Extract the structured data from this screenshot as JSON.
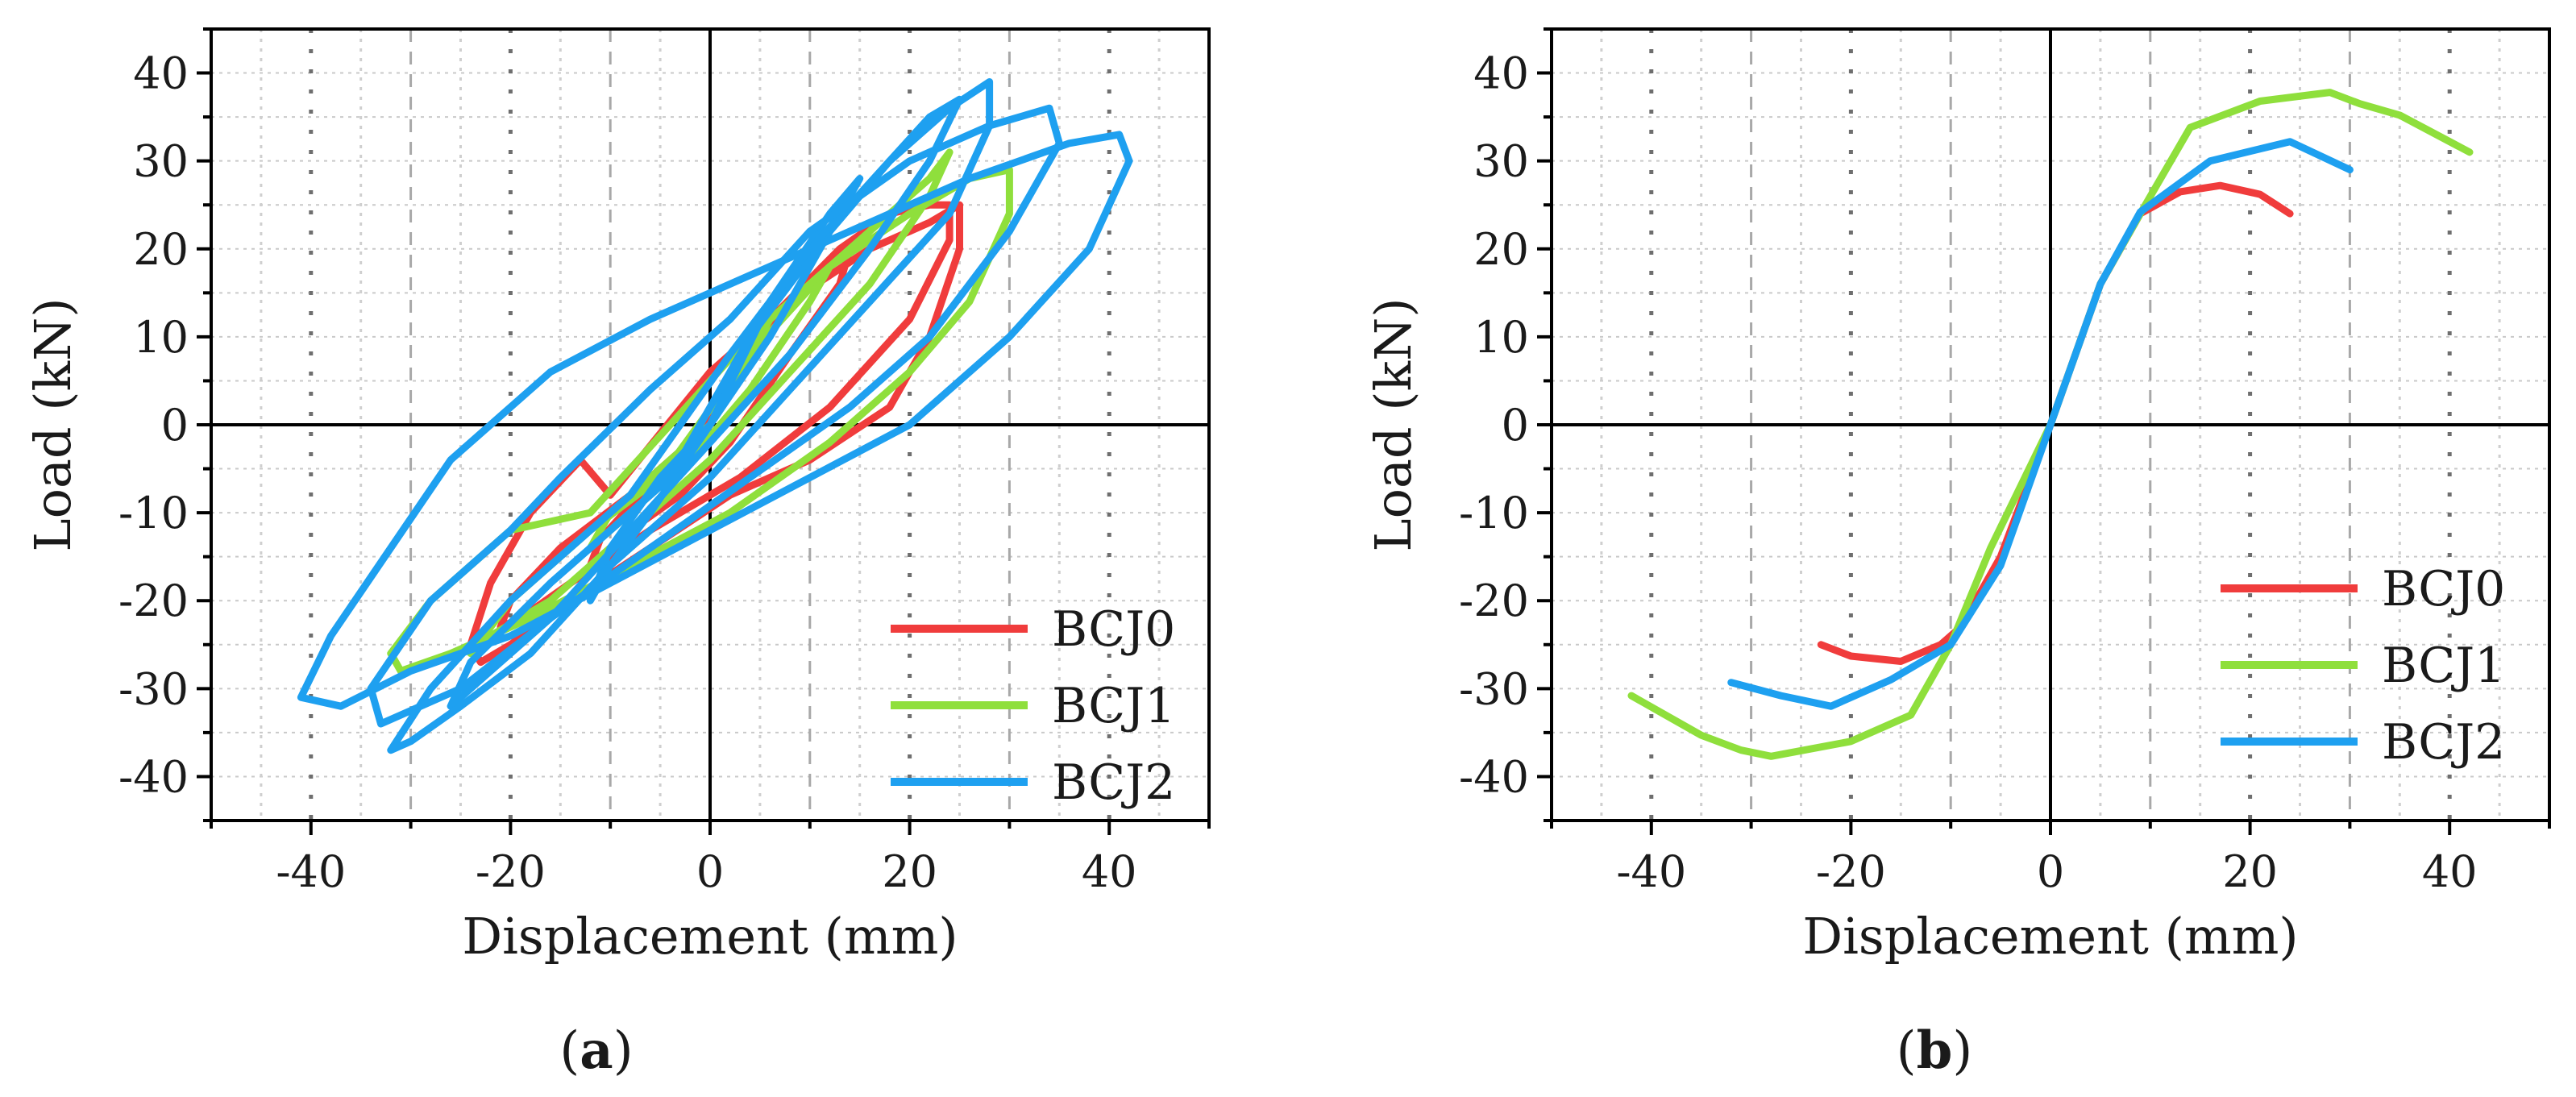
{
  "chart_data": [
    {
      "id": "a",
      "type": "line",
      "caption": "(a)",
      "caption_parts": [
        "(",
        "a",
        ")"
      ],
      "xlabel": "Displacement (mm)",
      "ylabel": "Load (kN)",
      "xlim": [
        -50,
        50
      ],
      "ylim": [
        -45,
        45
      ],
      "xticks": [
        -40,
        -20,
        0,
        20,
        40
      ],
      "xtick_labels": [
        "-40",
        "-20",
        "0",
        "20",
        "40"
      ],
      "yticks": [
        -40,
        -30,
        -20,
        -10,
        0,
        10,
        20,
        30,
        40
      ],
      "ytick_labels": [
        "-40",
        "-30",
        "-20",
        "-10",
        "0",
        "10",
        "20",
        "30",
        "40"
      ],
      "grid": true,
      "legend_position": "bottom-right",
      "series": [
        {
          "name": "BCJ0",
          "color": "#f03c3c",
          "loops": [
            [
              [
                0,
                0
              ],
              [
                5,
                10
              ],
              [
                10,
                16
              ],
              [
                14,
                20
              ],
              [
                13,
                16
              ],
              [
                8,
                8
              ],
              [
                2,
                -2
              ],
              [
                -3,
                -8
              ],
              [
                -8,
                -12
              ],
              [
                -12,
                -16
              ],
              [
                -11,
                -13
              ],
              [
                -7,
                -8
              ],
              [
                -2,
                -3
              ],
              [
                0,
                0
              ]
            ],
            [
              [
                -3,
                -5
              ],
              [
                6,
                12
              ],
              [
                13,
                20
              ],
              [
                18,
                24
              ],
              [
                22,
                25
              ],
              [
                24,
                25
              ],
              [
                24,
                21
              ],
              [
                20,
                12
              ],
              [
                12,
                2
              ],
              [
                3,
                -6
              ],
              [
                -6,
                -12
              ],
              [
                -14,
                -18
              ],
              [
                -19,
                -22
              ],
              [
                -21,
                -23
              ],
              [
                -20,
                -20
              ],
              [
                -15,
                -14
              ],
              [
                -8,
                -8
              ],
              [
                0,
                0
              ]
            ],
            [
              [
                -10,
                -8
              ],
              [
                0,
                6
              ],
              [
                8,
                14
              ],
              [
                16,
                20
              ],
              [
                22,
                23
              ],
              [
                25,
                25
              ],
              [
                25,
                20
              ],
              [
                22,
                10
              ],
              [
                18,
                2
              ],
              [
                10,
                -4
              ],
              [
                2,
                -8
              ],
              [
                -6,
                -14
              ],
              [
                -14,
                -20
              ],
              [
                -20,
                -25
              ],
              [
                -23,
                -27
              ],
              [
                -24,
                -25
              ],
              [
                -22,
                -18
              ],
              [
                -18,
                -10
              ],
              [
                -13,
                -4
              ],
              [
                -10,
                -8
              ]
            ]
          ]
        },
        {
          "name": "BCJ1",
          "color": "#8fdf3c",
          "loops": [
            [
              [
                0,
                0
              ],
              [
                6,
                12
              ],
              [
                10,
                16
              ],
              [
                12,
                18
              ],
              [
                10,
                14
              ],
              [
                4,
                4
              ],
              [
                -2,
                -4
              ],
              [
                -8,
                -10
              ],
              [
                -12,
                -14
              ],
              [
                -10,
                -10
              ],
              [
                -4,
                -4
              ],
              [
                0,
                0
              ]
            ],
            [
              [
                -5,
                -6
              ],
              [
                4,
                8
              ],
              [
                12,
                18
              ],
              [
                18,
                24
              ],
              [
                22,
                28
              ],
              [
                24,
                31
              ],
              [
                22,
                26
              ],
              [
                16,
                16
              ],
              [
                8,
                6
              ],
              [
                0,
                -4
              ],
              [
                -8,
                -12
              ],
              [
                -16,
                -20
              ],
              [
                -22,
                -24
              ],
              [
                -24,
                -26
              ],
              [
                -20,
                -20
              ],
              [
                -12,
                -12
              ],
              [
                -5,
                -6
              ]
            ],
            [
              [
                -12,
                -10
              ],
              [
                -4,
                0
              ],
              [
                4,
                10
              ],
              [
                12,
                18
              ],
              [
                20,
                24
              ],
              [
                26,
                28
              ],
              [
                30,
                29
              ],
              [
                30,
                24
              ],
              [
                26,
                14
              ],
              [
                20,
                6
              ],
              [
                12,
                -2
              ],
              [
                2,
                -10
              ],
              [
                -8,
                -16
              ],
              [
                -18,
                -22
              ],
              [
                -26,
                -26
              ],
              [
                -31,
                -28
              ],
              [
                -32,
                -26
              ],
              [
                -28,
                -20
              ],
              [
                -20,
                -12
              ],
              [
                -12,
                -10
              ]
            ]
          ]
        },
        {
          "name": "BCJ2",
          "color": "#1ea0f0",
          "loops": [
            [
              [
                0,
                0
              ],
              [
                6,
                14
              ],
              [
                12,
                24
              ],
              [
                15,
                28
              ],
              [
                12,
                22
              ],
              [
                6,
                10
              ],
              [
                0,
                0
              ],
              [
                -6,
                -10
              ],
              [
                -10,
                -16
              ],
              [
                -12,
                -20
              ],
              [
                -10,
                -14
              ],
              [
                -5,
                -6
              ],
              [
                0,
                0
              ]
            ],
            [
              [
                -4,
                -6
              ],
              [
                4,
                10
              ],
              [
                12,
                22
              ],
              [
                18,
                30
              ],
              [
                22,
                35
              ],
              [
                25,
                37
              ],
              [
                22,
                30
              ],
              [
                16,
                20
              ],
              [
                8,
                8
              ],
              [
                0,
                -2
              ],
              [
                -8,
                -12
              ],
              [
                -16,
                -22
              ],
              [
                -22,
                -28
              ],
              [
                -26,
                -32
              ],
              [
                -24,
                -27
              ],
              [
                -16,
                -18
              ],
              [
                -8,
                -10
              ],
              [
                -4,
                -6
              ]
            ],
            [
              [
                -8,
                -8
              ],
              [
                2,
                8
              ],
              [
                10,
                20
              ],
              [
                18,
                30
              ],
              [
                24,
                36
              ],
              [
                28,
                39
              ],
              [
                28,
                34
              ],
              [
                24,
                24
              ],
              [
                16,
                14
              ],
              [
                8,
                4
              ],
              [
                0,
                -6
              ],
              [
                -10,
                -16
              ],
              [
                -18,
                -26
              ],
              [
                -25,
                -32
              ],
              [
                -30,
                -36
              ],
              [
                -32,
                -37
              ],
              [
                -28,
                -30
              ],
              [
                -20,
                -20
              ],
              [
                -12,
                -12
              ],
              [
                -8,
                -8
              ]
            ],
            [
              [
                -15,
                -6
              ],
              [
                -6,
                4
              ],
              [
                2,
                12
              ],
              [
                10,
                22
              ],
              [
                20,
                30
              ],
              [
                28,
                34
              ],
              [
                34,
                36
              ],
              [
                35,
                32
              ],
              [
                30,
                22
              ],
              [
                22,
                10
              ],
              [
                14,
                2
              ],
              [
                4,
                -6
              ],
              [
                -6,
                -14
              ],
              [
                -16,
                -22
              ],
              [
                -25,
                -30
              ],
              [
                -33,
                -34
              ],
              [
                -34,
                -30
              ],
              [
                -28,
                -20
              ],
              [
                -20,
                -12
              ],
              [
                -15,
                -6
              ]
            ],
            [
              [
                -26,
                -4
              ],
              [
                -16,
                6
              ],
              [
                -6,
                12
              ],
              [
                4,
                17
              ],
              [
                14,
                22
              ],
              [
                26,
                28
              ],
              [
                36,
                32
              ],
              [
                41,
                33
              ],
              [
                42,
                30
              ],
              [
                38,
                20
              ],
              [
                30,
                10
              ],
              [
                20,
                0
              ],
              [
                10,
                -6
              ],
              [
                0,
                -12
              ],
              [
                -10,
                -18
              ],
              [
                -20,
                -24
              ],
              [
                -30,
                -28
              ],
              [
                -37,
                -32
              ],
              [
                -41,
                -31
              ],
              [
                -38,
                -24
              ],
              [
                -32,
                -14
              ],
              [
                -26,
                -4
              ]
            ]
          ]
        }
      ]
    },
    {
      "id": "b",
      "type": "line",
      "caption": "(b)",
      "caption_parts": [
        "(",
        "b",
        ")"
      ],
      "xlabel": "Displacement (mm)",
      "ylabel": "Load (kN)",
      "xlim": [
        -50,
        50
      ],
      "ylim": [
        -45,
        45
      ],
      "xticks": [
        -40,
        -20,
        0,
        20,
        40
      ],
      "xtick_labels": [
        "-40",
        "-20",
        "0",
        "20",
        "40"
      ],
      "yticks": [
        -40,
        -30,
        -20,
        -10,
        0,
        10,
        20,
        30,
        40
      ],
      "ytick_labels": [
        "-40",
        "-30",
        "-20",
        "-10",
        "0",
        "10",
        "20",
        "30",
        "40"
      ],
      "grid": true,
      "legend_position": "bottom-right",
      "series": [
        {
          "name": "BCJ0",
          "color": "#f03c3c",
          "x": [
            -23,
            -20,
            -15,
            -11,
            -9,
            -5,
            0,
            5,
            9,
            13,
            17,
            21,
            24
          ],
          "y": [
            -25,
            -26.3,
            -26.9,
            -25,
            -23,
            -15,
            0,
            16,
            24,
            26.5,
            27.2,
            26.2,
            24
          ]
        },
        {
          "name": "BCJ1",
          "color": "#8fdf3c",
          "x": [
            -42,
            -35,
            -31,
            -28,
            -20,
            -14,
            -10,
            -6,
            0,
            5,
            9,
            14,
            21,
            28,
            31,
            35,
            42
          ],
          "y": [
            -30.8,
            -35.3,
            -37,
            -37.7,
            -36,
            -33,
            -25,
            -14,
            0,
            16,
            24,
            33.8,
            36.8,
            37.8,
            36.5,
            35.2,
            31
          ]
        },
        {
          "name": "BCJ2",
          "color": "#1ea0f0",
          "x": [
            -32,
            -27,
            -22,
            -16,
            -10,
            -5,
            0,
            5,
            9,
            16,
            24,
            30
          ],
          "y": [
            -29.3,
            -30.8,
            -32,
            -29,
            -25,
            -16,
            0,
            16,
            24.2,
            30,
            32.2,
            29
          ]
        }
      ]
    }
  ]
}
